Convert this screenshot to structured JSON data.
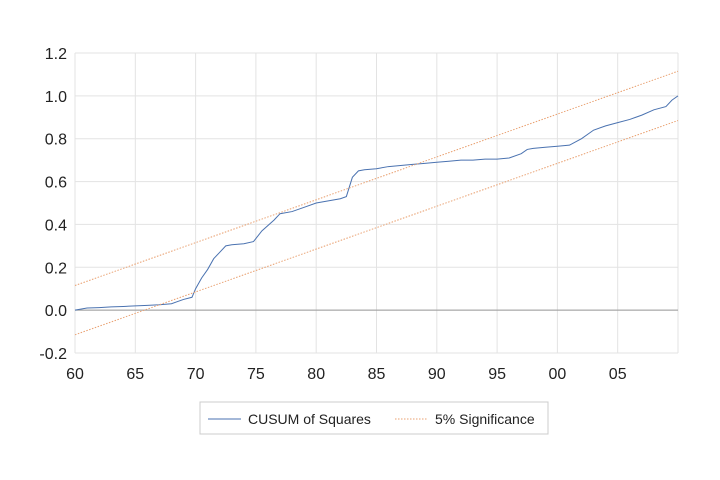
{
  "chart_data": {
    "type": "line",
    "title": "",
    "xlabel": "",
    "ylabel": "",
    "xlim": [
      1960,
      2010
    ],
    "ylim": [
      -0.2,
      1.2
    ],
    "x_tick_values": [
      1960,
      1965,
      1970,
      1975,
      1980,
      1985,
      1990,
      1995,
      2000,
      2005
    ],
    "x_tick_labels": [
      "60",
      "65",
      "70",
      "75",
      "80",
      "85",
      "90",
      "95",
      "00",
      "05"
    ],
    "y_tick_values": [
      -0.2,
      0.0,
      0.2,
      0.4,
      0.6,
      0.8,
      1.0,
      1.2
    ],
    "y_tick_labels": [
      "-0.2",
      "0.0",
      "0.2",
      "0.4",
      "0.6",
      "0.8",
      "1.0",
      "1.2"
    ],
    "grid": true,
    "legend_position": "bottom",
    "series": [
      {
        "name": "CUSUM of Squares",
        "color": "#4a72b0",
        "style": "solid",
        "x": [
          1960,
          1961,
          1962,
          1963,
          1964,
          1965,
          1966,
          1967,
          1968,
          1968.5,
          1969,
          1969.7,
          1970,
          1970.5,
          1971,
          1971.5,
          1972,
          1972.5,
          1973,
          1974,
          1974.8,
          1975.5,
          1976.5,
          1977,
          1978,
          1979,
          1980,
          1981,
          1982,
          1982.5,
          1983,
          1983.5,
          1984,
          1985,
          1986,
          1987,
          1988,
          1989,
          1990,
          1991,
          1992,
          1993,
          1994,
          1995,
          1996,
          1997,
          1997.5,
          1998,
          1999,
          2000,
          2001,
          2002,
          2003,
          2004,
          2005,
          2006,
          2007,
          2008,
          2009,
          2009.5,
          2010
        ],
        "y": [
          0.0,
          0.01,
          0.012,
          0.015,
          0.017,
          0.02,
          0.022,
          0.025,
          0.03,
          0.04,
          0.05,
          0.06,
          0.1,
          0.15,
          0.19,
          0.24,
          0.27,
          0.3,
          0.305,
          0.31,
          0.32,
          0.37,
          0.42,
          0.45,
          0.46,
          0.48,
          0.5,
          0.51,
          0.52,
          0.53,
          0.62,
          0.65,
          0.655,
          0.66,
          0.67,
          0.675,
          0.68,
          0.685,
          0.69,
          0.695,
          0.7,
          0.7,
          0.705,
          0.705,
          0.71,
          0.73,
          0.75,
          0.755,
          0.76,
          0.765,
          0.77,
          0.8,
          0.84,
          0.86,
          0.875,
          0.89,
          0.91,
          0.935,
          0.95,
          0.98,
          1.0
        ]
      },
      {
        "name": "5% Significance",
        "color": "#e9a070",
        "style": "dotted",
        "x": [
          1960,
          2010
        ],
        "y": [
          0.115,
          1.115
        ]
      },
      {
        "name": "",
        "color": "#e9a070",
        "style": "dotted",
        "x": [
          1960,
          2010
        ],
        "y": [
          -0.115,
          0.885
        ]
      }
    ],
    "legend": [
      "CUSUM of Squares",
      "5% Significance"
    ]
  }
}
